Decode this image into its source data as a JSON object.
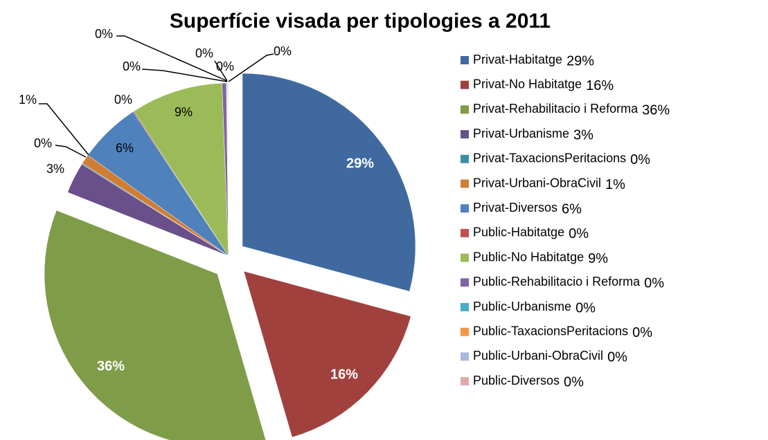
{
  "chart_data": {
    "type": "pie",
    "title": "Superfície visada per tipologies a 2011",
    "categories": [
      "Privat-Habitatge",
      "Privat-No Habitatge",
      "Privat-Rehabilitacio i Reforma",
      "Privat-Urbanisme",
      "Privat-TaxacionsPeritacions",
      "Privat-Urbani-ObraCivil",
      "Privat-Diversos",
      "Public-Habitatge",
      "Public-No Habitatge",
      "Public-Rehabilitacio i Reforma",
      "Public-Urbanisme",
      "Public-TaxacionsPeritacions",
      "Public-Urbani-ObraCivil",
      "Public-Diversos"
    ],
    "values": [
      29.2,
      16.3,
      35.5,
      2.9,
      0.1,
      0.9,
      5.8,
      0.1,
      8.6,
      0.4,
      0.05,
      0.05,
      0.05,
      0.05
    ],
    "value_labels": [
      "29%",
      "16%",
      "36%",
      "3%",
      "0%",
      "1%",
      "6%",
      "0%",
      "9%",
      "0%",
      "0%",
      "0%",
      "0%",
      "0%"
    ],
    "colors": [
      "#4069A0",
      "#A0413E",
      "#7F9C48",
      "#69508A",
      "#3A8FA6",
      "#D17E35",
      "#4F81BD",
      "#C0504D",
      "#9BBB59",
      "#8064A2",
      "#4BACC6",
      "#F79646",
      "#A9B9DC",
      "#E0A9A8"
    ],
    "legend": "right"
  }
}
